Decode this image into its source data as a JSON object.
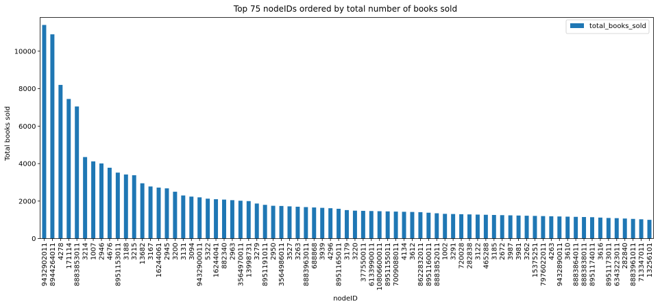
{
  "chart_data": {
    "type": "bar",
    "title": "Top 75 nodeIDs ordered by total number of books sold",
    "xlabel": "nodeID",
    "ylabel": "Total books sold",
    "ylim": [
      0,
      11800
    ],
    "yticks": [
      0,
      2000,
      4000,
      6000,
      8000,
      10000
    ],
    "grid": false,
    "legend_position": "top-right",
    "series": [
      {
        "name": "total_books_sold",
        "color": "#1f77b4",
        "values": [
          11400,
          10900,
          8200,
          7450,
          7050,
          4350,
          4120,
          4010,
          3780,
          3520,
          3420,
          3380,
          2950,
          2780,
          2720,
          2680,
          2500,
          2300,
          2240,
          2200,
          2130,
          2100,
          2080,
          2050,
          2020,
          2000,
          1870,
          1800,
          1750,
          1740,
          1720,
          1700,
          1680,
          1660,
          1640,
          1620,
          1590,
          1520,
          1490,
          1480,
          1470,
          1460,
          1450,
          1440,
          1430,
          1420,
          1410,
          1380,
          1350,
          1320,
          1310,
          1300,
          1290,
          1280,
          1270,
          1260,
          1250,
          1240,
          1230,
          1220,
          1210,
          1200,
          1190,
          1180,
          1170,
          1160,
          1150,
          1140,
          1120,
          1100,
          1090,
          1070,
          1050,
          1030,
          1000
        ]
      }
    ],
    "categories": [
      "9432902011",
      "8944264011",
      "4278",
      "171114",
      "8883853011",
      "3214",
      "1007",
      "2946",
      "4676",
      "8951153011",
      "3188",
      "3215",
      "13682",
      "3167",
      "16244061",
      "2945",
      "3200",
      "3131",
      "3094",
      "9432900011",
      "5322",
      "16244041",
      "882340",
      "2963",
      "3564970011",
      "13998731",
      "3279",
      "8951191011",
      "2950",
      "3564986011",
      "3527",
      "3263",
      "8883963011",
      "688868",
      "3939",
      "4296",
      "8951165011",
      "3179",
      "3220",
      "377550011",
      "6133990011",
      "10806600011",
      "8951155011",
      "7009088011",
      "4134",
      "3612",
      "8622832011",
      "8951160011",
      "8883852011",
      "1002",
      "3291",
      "720028",
      "282838",
      "3122",
      "465288",
      "3185",
      "2672",
      "3987",
      "3981",
      "3262",
      "15375251",
      "7976022011",
      "4263",
      "9432890011",
      "3610",
      "8883864011",
      "8883838011",
      "8951174011",
      "3616",
      "8951173011",
      "6343223011",
      "282840",
      "8883961011",
      "713347011",
      "13256101"
    ]
  }
}
